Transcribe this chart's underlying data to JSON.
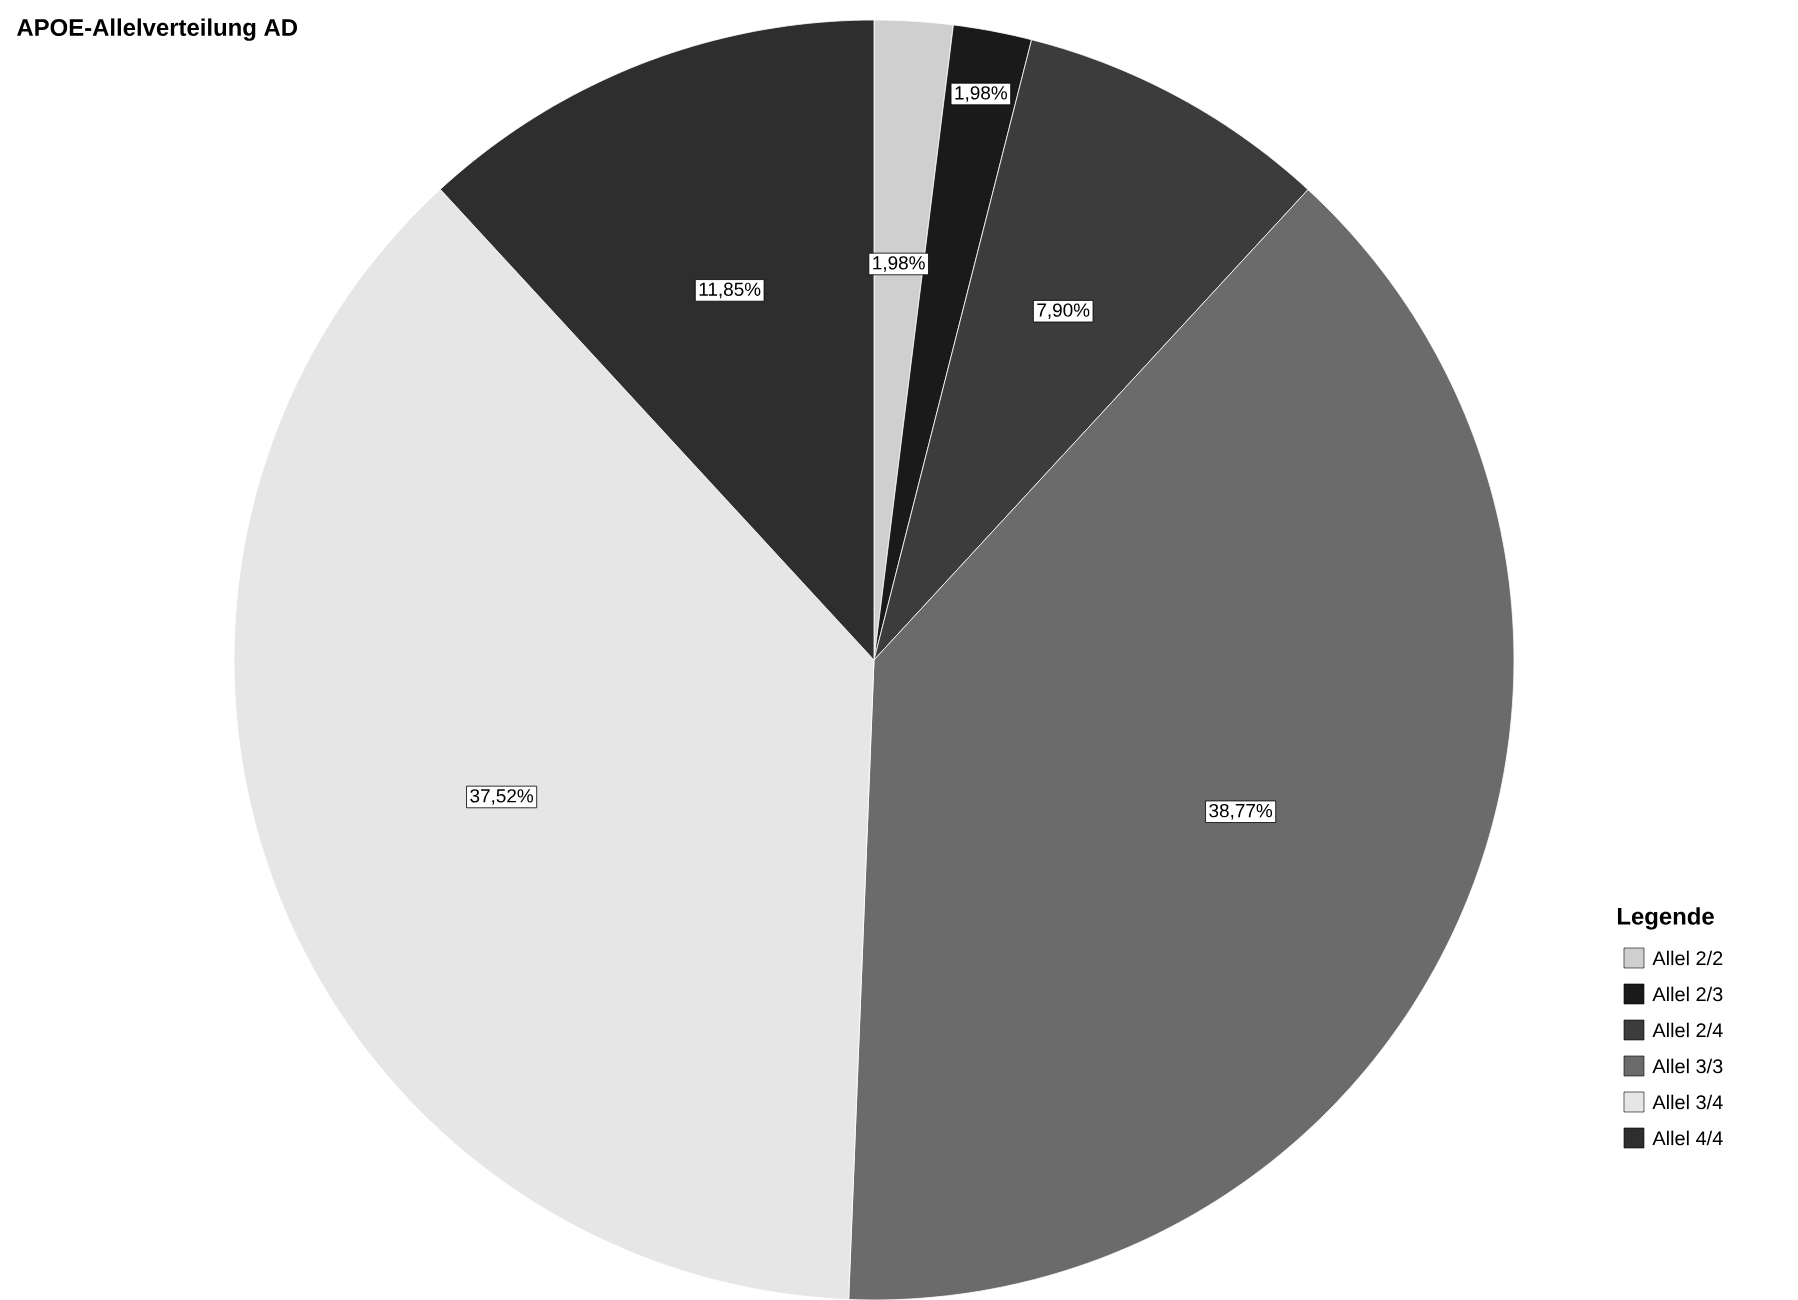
{
  "chart_data": {
    "type": "pie",
    "title": "APOE-Allelverteilung AD",
    "legend_title": "Legende",
    "categories": [
      "Allel 2/2",
      "Allel 2/3",
      "Allel 2/4",
      "Allel 3/3",
      "Allel 3/4",
      "Allel 4/4"
    ],
    "values": [
      1.98,
      1.98,
      7.9,
      38.77,
      37.52,
      11.85
    ],
    "colors": [
      "#cfcfcf",
      "#1a1a1a",
      "#3c3c3c",
      "#6b6b6b",
      "#e6e6e6",
      "#2e2e2e"
    ],
    "value_labels": [
      "1,98%",
      "1,98%",
      "7,90%",
      "38,77%",
      "37,52%",
      "11,85%"
    ],
    "legend": "bottom right"
  }
}
